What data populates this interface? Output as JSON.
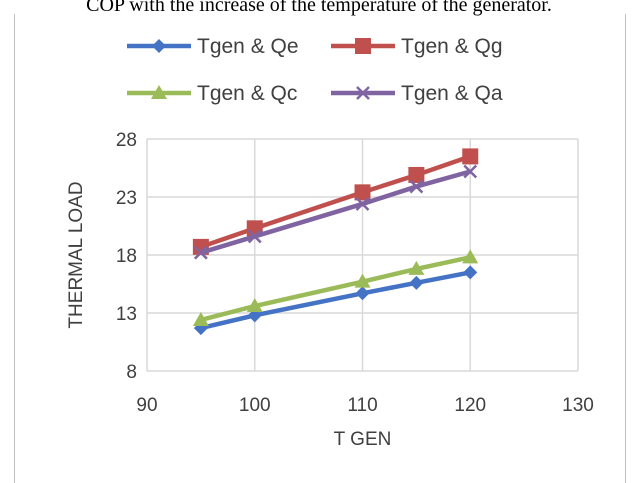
{
  "caption_fragment": "COP with the increase of the temperature of the generator.",
  "chart_data": {
    "type": "line",
    "xlabel": "T  GEN",
    "ylabel": "THERMAL LOAD",
    "xlim": [
      90,
      130
    ],
    "ylim": [
      8,
      28
    ],
    "xticks": [
      90,
      100,
      110,
      120,
      130
    ],
    "yticks": [
      8,
      13,
      18,
      23,
      28
    ],
    "grid": true,
    "legend_placement": "top",
    "x": [
      95,
      100,
      110,
      115,
      120
    ],
    "series": [
      {
        "name": "Tgen & Qe",
        "color": "#4472c4",
        "marker": "diamond",
        "values": [
          11.7,
          12.8,
          14.7,
          15.6,
          16.5
        ]
      },
      {
        "name": "Tgen & Qg",
        "color": "#c0504d",
        "marker": "square",
        "values": [
          18.7,
          20.3,
          23.4,
          24.9,
          26.5
        ]
      },
      {
        "name": "Tgen & Qc",
        "color": "#9bbb59",
        "marker": "triangle",
        "values": [
          12.4,
          13.6,
          15.7,
          16.8,
          17.8
        ]
      },
      {
        "name": "Tgen & Qa",
        "color": "#8064a2",
        "marker": "x",
        "values": [
          18.2,
          19.6,
          22.4,
          23.9,
          25.2
        ]
      }
    ]
  }
}
